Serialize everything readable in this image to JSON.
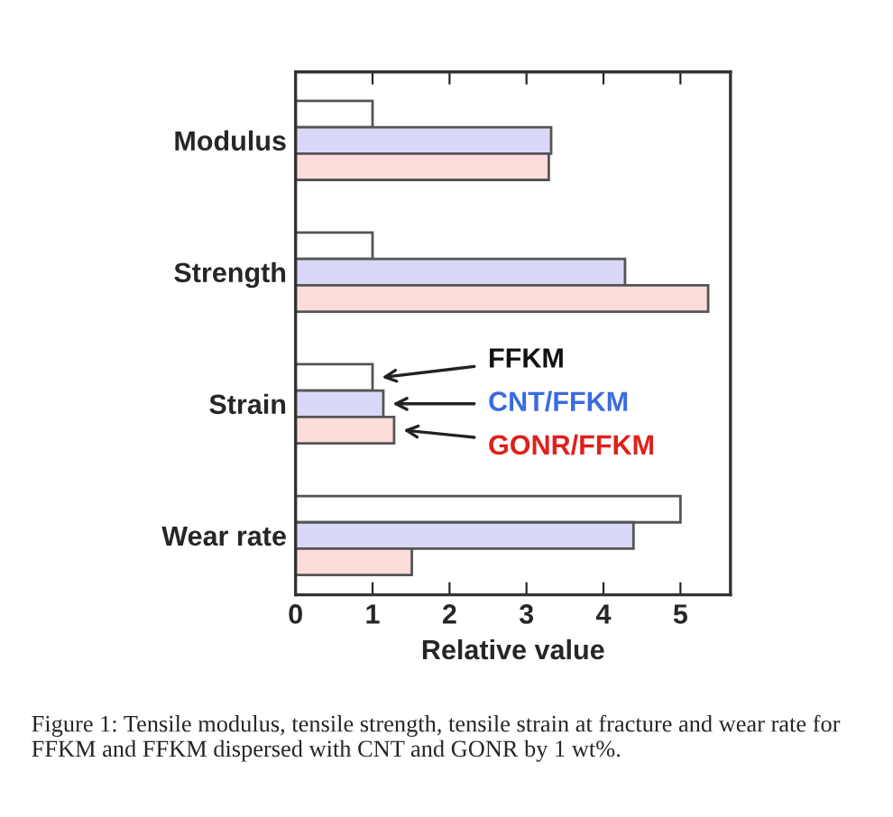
{
  "chart_data": {
    "type": "bar",
    "orientation": "horizontal",
    "xlabel": "Relative value",
    "categories": [
      "Modulus",
      "Strength",
      "Strain",
      "Wear rate"
    ],
    "series": [
      {
        "name": "FFKM",
        "color": "#ffffff",
        "values": [
          1.0,
          1.0,
          1.0,
          5.0
        ]
      },
      {
        "name": "CNT/FFKM",
        "color": "#d9d9f7",
        "values": [
          3.32,
          4.28,
          1.14,
          4.39
        ]
      },
      {
        "name": "GONR/FFKM",
        "color": "#fddcdc",
        "values": [
          3.29,
          5.36,
          1.28,
          1.51
        ]
      }
    ],
    "xlim": [
      0,
      5.65
    ],
    "xticks": [
      0,
      1,
      2,
      3,
      4,
      5
    ],
    "grid": false,
    "legend": "right",
    "annotations": [
      "Figure 1: Tensile modulus, tensile strength, tensile strain at fracture and wear rate for FFKM and FFKM dispersed with CNT and GONR by 1 wt%."
    ]
  }
}
